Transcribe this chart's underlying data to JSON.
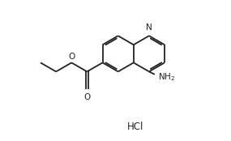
{
  "background_color": "#ffffff",
  "line_color": "#222222",
  "line_width": 1.3,
  "text_color": "#222222",
  "font_size": 7.5,
  "hcl_font_size": 8.5,
  "figsize": [
    2.85,
    1.74
  ],
  "dpi": 100,
  "hcl_label": "HCl",
  "n_label": "N",
  "o_label": "O",
  "nh2_label": "NH",
  "nh2_sub": "2"
}
